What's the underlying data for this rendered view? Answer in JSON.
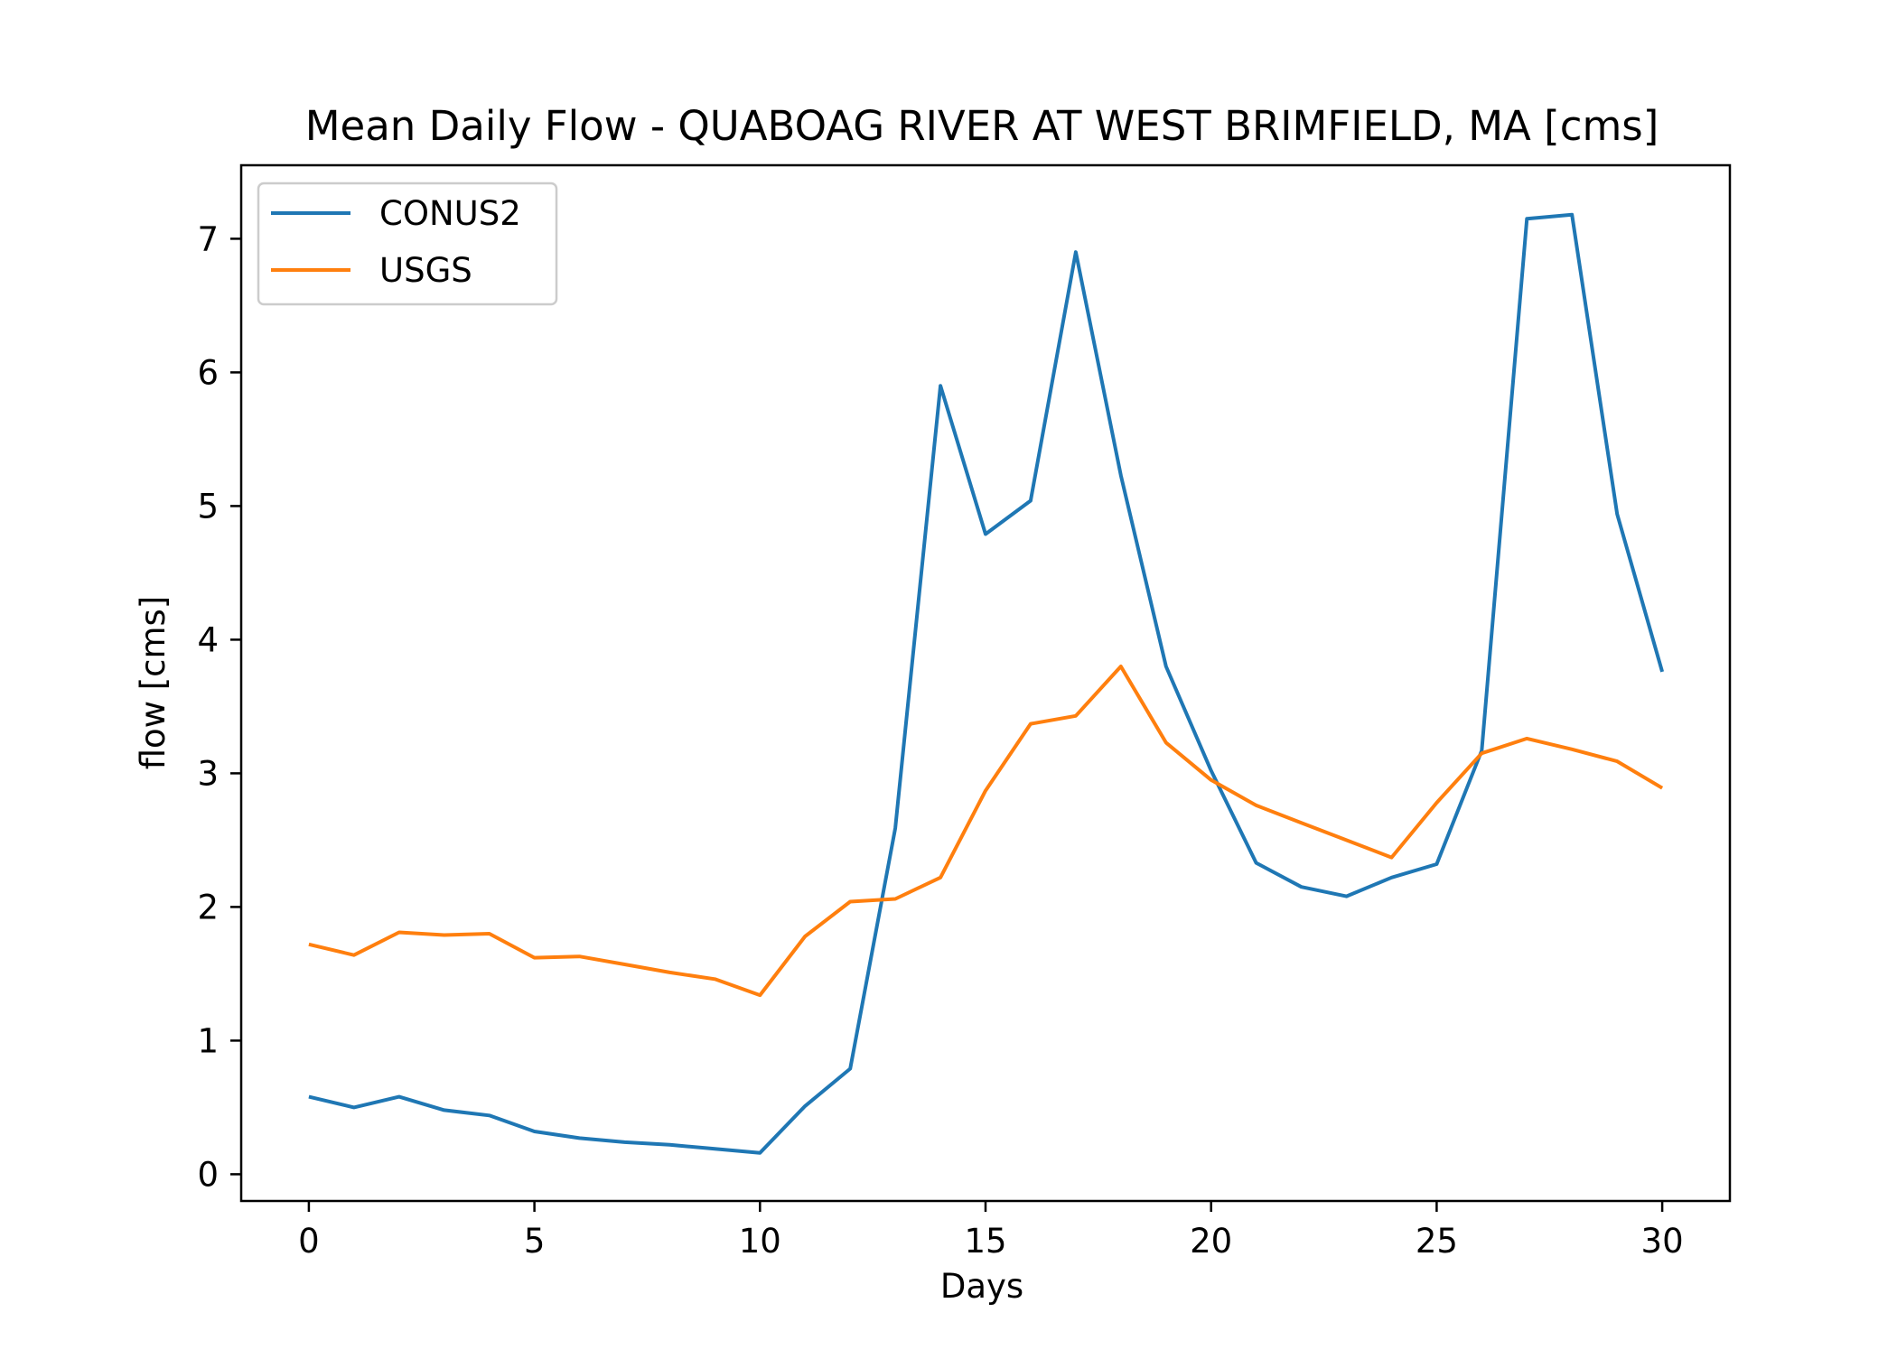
{
  "chart_data": {
    "type": "line",
    "title": "Mean Daily Flow - QUABOAG RIVER AT WEST BRIMFIELD, MA [cms]",
    "xlabel": "Days",
    "ylabel": "flow [cms]",
    "xlim": [
      -1.5,
      31.5
    ],
    "ylim": [
      -0.2,
      7.55
    ],
    "xticks": [
      0,
      5,
      10,
      15,
      20,
      25,
      30
    ],
    "yticks": [
      0,
      1,
      2,
      3,
      4,
      5,
      6,
      7
    ],
    "grid": false,
    "legend_position": "upper-left",
    "x": [
      0,
      1,
      2,
      3,
      4,
      5,
      6,
      7,
      8,
      9,
      10,
      11,
      12,
      13,
      14,
      15,
      16,
      17,
      18,
      19,
      20,
      21,
      22,
      23,
      24,
      25,
      26,
      27,
      28,
      29,
      30
    ],
    "series": [
      {
        "name": "CONUS2",
        "color": "#1f77b4",
        "values": [
          0.58,
          0.5,
          0.58,
          0.48,
          0.44,
          0.32,
          0.27,
          0.24,
          0.22,
          0.19,
          0.16,
          0.51,
          0.79,
          2.59,
          5.9,
          4.79,
          5.04,
          6.9,
          5.23,
          3.8,
          3.02,
          2.33,
          2.15,
          2.08,
          2.22,
          2.32,
          3.17,
          7.15,
          7.18,
          4.94,
          3.76
        ]
      },
      {
        "name": "USGS",
        "color": "#ff7f0e",
        "values": [
          1.72,
          1.64,
          1.81,
          1.79,
          1.8,
          1.62,
          1.63,
          1.57,
          1.51,
          1.46,
          1.34,
          1.78,
          2.04,
          2.06,
          2.22,
          2.87,
          3.37,
          3.43,
          3.8,
          3.23,
          2.95,
          2.76,
          2.63,
          2.5,
          2.37,
          2.78,
          3.15,
          3.26,
          3.18,
          3.09,
          2.89
        ]
      }
    ]
  }
}
